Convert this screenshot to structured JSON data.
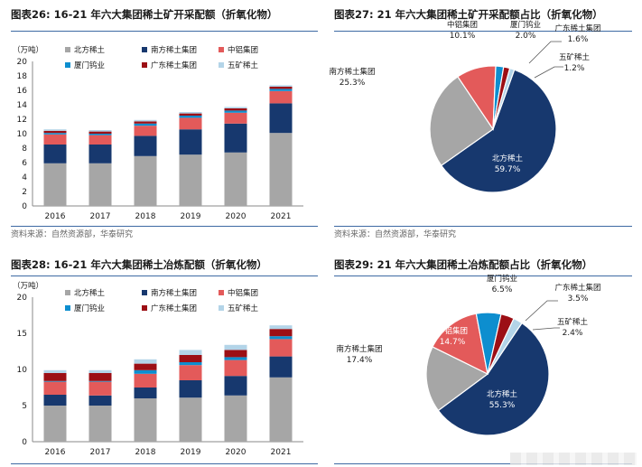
{
  "panels": [
    {
      "id": "fig26",
      "title": "图表26:   16-21 年六大集团稀土矿开采配额（折氧化物）",
      "source": "资料来源：自然资源部，华泰研究",
      "chart_data": {
        "type": "bar",
        "stacked": true,
        "unit_label": "（万吨）",
        "categories": [
          "2016",
          "2017",
          "2018",
          "2019",
          "2020",
          "2021"
        ],
        "ylim": [
          0,
          20
        ],
        "yticks": [
          0,
          2,
          4,
          6,
          8,
          10,
          12,
          14,
          16,
          18,
          20
        ],
        "legend_position": "top",
        "series": [
          {
            "name": "北方稀土",
            "color": "#a6a6a6",
            "values": [
              5.9,
              5.9,
              6.9,
              7.1,
              7.4,
              10.1
            ]
          },
          {
            "name": "南方稀土集团",
            "color": "#17386e",
            "values": [
              2.6,
              2.6,
              2.8,
              3.5,
              4.0,
              4.1
            ]
          },
          {
            "name": "中铝集团",
            "color": "#e35a5a",
            "values": [
              1.4,
              1.3,
              1.4,
              1.6,
              1.5,
              1.7
            ]
          },
          {
            "name": "厦门钨业",
            "color": "#0d8ecf",
            "values": [
              0.2,
              0.2,
              0.3,
              0.3,
              0.3,
              0.3
            ]
          },
          {
            "name": "广东稀土集团",
            "color": "#9c0f15",
            "values": [
              0.3,
              0.3,
              0.3,
              0.3,
              0.3,
              0.3
            ]
          },
          {
            "name": "五矿稀土",
            "color": "#b3d4e8",
            "values": [
              0.2,
              0.2,
              0.2,
              0.2,
              0.2,
              0.2
            ]
          }
        ]
      }
    },
    {
      "id": "fig27",
      "title": "图表27:   21 年六大集团稀土矿开采配额占比（折氧化物）",
      "source": "资料来源：自然资源部，华泰研究",
      "chart_data": {
        "type": "pie",
        "slices": [
          {
            "name": "北方稀土",
            "value": 59.7,
            "label": "59.7%",
            "color": "#17386e"
          },
          {
            "name": "南方稀土集团",
            "value": 25.3,
            "label": "25.3%",
            "color": "#a6a6a6"
          },
          {
            "name": "中铝集团",
            "value": 10.1,
            "label": "10.1%",
            "color": "#e35a5a"
          },
          {
            "name": "厦门钨业",
            "value": 2.0,
            "label": "2.0%",
            "color": "#0d8ecf"
          },
          {
            "name": "广东稀土集团",
            "value": 1.6,
            "label": "1.6%",
            "color": "#9c0f15"
          },
          {
            "name": "五矿稀土",
            "value": 1.2,
            "label": "1.2%",
            "color": "#b3d4e8"
          }
        ]
      }
    },
    {
      "id": "fig28",
      "title": "图表28:   16-21 年六大集团稀土冶炼配额（折氧化物）",
      "source": "",
      "chart_data": {
        "type": "bar",
        "stacked": true,
        "unit_label": "（万吨）",
        "categories": [
          "2016",
          "2017",
          "2018",
          "2019",
          "2020",
          "2021"
        ],
        "ylim": [
          0,
          20
        ],
        "yticks": [
          0,
          5,
          10,
          15,
          20
        ],
        "legend_position": "top",
        "series": [
          {
            "name": "北方稀土",
            "color": "#a6a6a6",
            "values": [
              5.0,
              5.0,
              6.0,
              6.1,
              6.4,
              8.9
            ]
          },
          {
            "name": "南方稀土集团",
            "color": "#17386e",
            "values": [
              1.5,
              1.4,
              1.5,
              2.4,
              2.7,
              2.9
            ]
          },
          {
            "name": "中铝集团",
            "color": "#e35a5a",
            "values": [
              1.8,
              1.9,
              1.9,
              2.1,
              2.2,
              2.4
            ]
          },
          {
            "name": "厦门钨业",
            "color": "#0d8ecf",
            "values": [
              0.1,
              0.1,
              0.5,
              0.4,
              0.4,
              0.4
            ]
          },
          {
            "name": "广东稀土集团",
            "color": "#9c0f15",
            "values": [
              1.1,
              1.1,
              0.9,
              1.0,
              1.0,
              1.0
            ]
          },
          {
            "name": "五矿稀土",
            "color": "#b3d4e8",
            "values": [
              0.4,
              0.4,
              0.6,
              0.7,
              0.7,
              0.5
            ]
          }
        ]
      }
    },
    {
      "id": "fig29",
      "title": "图表29:   21 年六大集团稀土冶炼配额占比（折氧化物）",
      "source": "",
      "chart_data": {
        "type": "pie",
        "slices": [
          {
            "name": "北方稀土",
            "value": 55.3,
            "label": "55.3%",
            "color": "#17386e"
          },
          {
            "name": "南方稀土集团",
            "value": 17.4,
            "label": "17.4%",
            "color": "#a6a6a6"
          },
          {
            "name": "中铝集团",
            "value": 14.7,
            "label": "14.7%",
            "color": "#e35a5a"
          },
          {
            "name": "厦门钨业",
            "value": 6.5,
            "label": "6.5%",
            "color": "#0d8ecf"
          },
          {
            "name": "广东稀土集团",
            "value": 3.5,
            "label": "3.5%",
            "color": "#9c0f15"
          },
          {
            "name": "五矿稀土",
            "value": 2.4,
            "label": "2.4%",
            "color": "#b3d4e8"
          }
        ]
      }
    }
  ]
}
